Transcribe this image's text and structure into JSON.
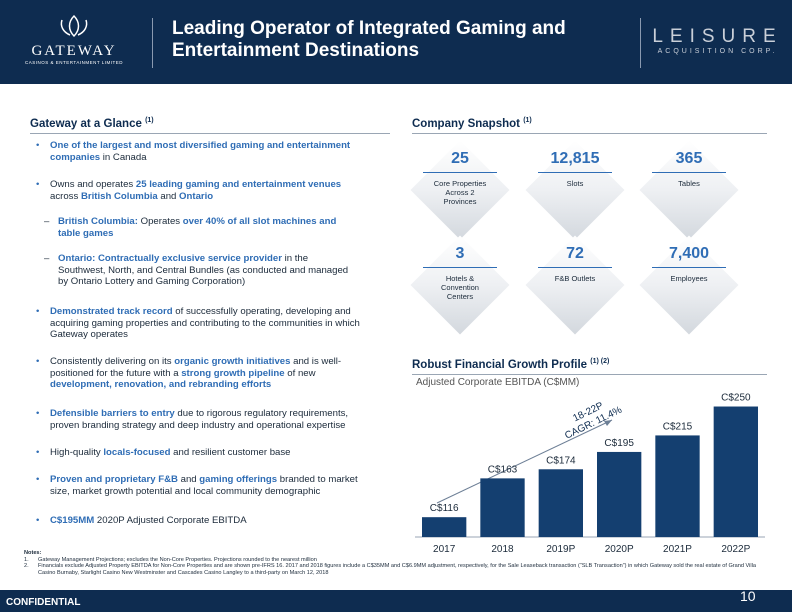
{
  "header": {
    "logo_left": {
      "name": "GATEWAY",
      "tagline": "CASINOS & ENTERTAINMENT LIMITED"
    },
    "title_lines": [
      "Leading Operator of Integrated Gaming and",
      "Entertainment Destinations"
    ],
    "logo_right": {
      "name": "LEISURE",
      "tagline": "ACQUISITION CORP."
    }
  },
  "glance": {
    "heading": "Gateway at a Glance",
    "note_ref": "(1)",
    "bullets": [
      {
        "level": 1,
        "runs": [
          {
            "text": "One of the largest and most diversified gaming and entertainment companies",
            "emphasis": true
          },
          {
            "text": " in Canada"
          }
        ]
      },
      {
        "level": 1,
        "runs": [
          {
            "text": "Owns and operates "
          },
          {
            "text": "25 leading gaming and entertainment venues",
            "emphasis": true
          },
          {
            "text": " across "
          },
          {
            "text": "British Columbia",
            "emphasis": true
          },
          {
            "text": " and "
          },
          {
            "text": "Ontario",
            "emphasis": true
          }
        ]
      },
      {
        "level": 2,
        "runs": [
          {
            "text": "British Columbia:",
            "emphasis": true
          },
          {
            "text": " Operates "
          },
          {
            "text": "over 40% of all slot machines and table games",
            "emphasis": true
          }
        ]
      },
      {
        "level": 2,
        "runs": [
          {
            "text": "Ontario: Contractually exclusive service provider",
            "emphasis": true
          },
          {
            "text": " in the Southwest, North, and Central Bundles (as conducted and managed by Ontario Lottery and Gaming  Corporation)"
          }
        ]
      },
      {
        "level": 1,
        "runs": [
          {
            "text": "Demonstrated track record",
            "emphasis": true
          },
          {
            "text": " of successfully operating, developing and acquiring gaming properties and contributing to the communities in which Gateway operates"
          }
        ]
      },
      {
        "level": 1,
        "runs": [
          {
            "text": "Consistently delivering on its "
          },
          {
            "text": "organic growth initiatives",
            "emphasis": true
          },
          {
            "text": " and is well-positioned for the future with a "
          },
          {
            "text": "strong growth pipeline",
            "emphasis": true
          },
          {
            "text": " of new "
          },
          {
            "text": "development, renovation, and rebranding efforts",
            "emphasis": true
          }
        ]
      },
      {
        "level": 1,
        "runs": [
          {
            "text": "Defensible barriers to entry",
            "emphasis": true
          },
          {
            "text": " due to rigorous regulatory requirements, proven branding strategy and deep industry and operational expertise"
          }
        ]
      },
      {
        "level": 1,
        "runs": [
          {
            "text": "High-quality "
          },
          {
            "text": "locals-focused",
            "emphasis": true
          },
          {
            "text": " and resilient customer base"
          }
        ]
      },
      {
        "level": 1,
        "runs": [
          {
            "text": "Proven and proprietary F&B",
            "emphasis": true
          },
          {
            "text": " and "
          },
          {
            "text": "gaming offerings",
            "emphasis": true
          },
          {
            "text": " branded to market size, market growth potential and local community demographic"
          }
        ]
      },
      {
        "level": 1,
        "runs": [
          {
            "text": "C$195MM",
            "emphasis": true
          },
          {
            "text": " 2020P Adjusted Corporate EBITDA"
          }
        ]
      }
    ]
  },
  "snapshot": {
    "heading": "Company Snapshot",
    "note_ref": "(1)",
    "tiles": [
      {
        "value": "25",
        "label": "Core Properties Across 2 Provinces"
      },
      {
        "value": "12,815",
        "label": "Slots"
      },
      {
        "value": "365",
        "label": "Tables"
      },
      {
        "value": "3",
        "label": "Hotels & Convention Centers"
      },
      {
        "value": "72",
        "label": "F&B Outlets"
      },
      {
        "value": "7,400",
        "label": "Employees"
      }
    ]
  },
  "growth": {
    "heading": "Robust Financial Growth Profile",
    "note_ref": "(1) (2)"
  },
  "chart_data": {
    "type": "bar",
    "title": "Adjusted Corporate EBITDA (C$MM)",
    "categories": [
      "2017",
      "2018",
      "2019P",
      "2020P",
      "2021P",
      "2022P"
    ],
    "values": [
      116,
      163,
      174,
      195,
      215,
      250
    ],
    "value_labels": [
      "C$116",
      "C$163",
      "C$174",
      "C$195",
      "C$215",
      "C$250"
    ],
    "color": "#143f70",
    "ylim": [
      92,
      270
    ],
    "annotation": [
      "18-22P",
      "CAGR: 11.4%"
    ]
  },
  "notes": {
    "heading": "Notes:",
    "items": [
      {
        "number": "1.",
        "text": "Gateway Management Projections; excludes the Non-Core Properties. Projections rounded to the nearest million"
      },
      {
        "number": "2.",
        "text": "Financials exclude Adjusted Property EBITDA for Non-Core Properties and are shown pre-IFRS 16. 2017 and 2018 figures include a C$35MM and C$6.9MM adjustment, respectively, for the Sale Leaseback transaction (“SLB Transaction”) in which Gateway sold the real estate of Grand Villa Casino Burnaby, Starlight Casino New Westminster and Cascades Casino Langley to a third-party on March 12, 2018"
      }
    ]
  },
  "footer": {
    "label": "CONFIDENTIAL",
    "page": "10"
  }
}
